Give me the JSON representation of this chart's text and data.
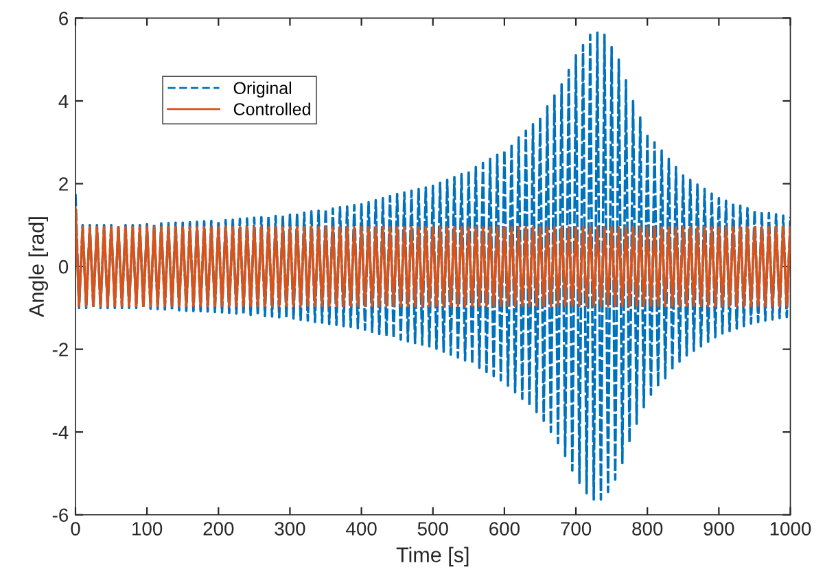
{
  "chart_data": {
    "type": "line",
    "xlabel": "Time [s]",
    "ylabel": "Angle [rad]",
    "xlim": [
      0,
      1000
    ],
    "xticks": [
      0,
      100,
      200,
      300,
      400,
      500,
      600,
      700,
      800,
      900,
      1000
    ],
    "ylim": [
      -6,
      6
    ],
    "yticks": [
      -6,
      -4,
      -2,
      0,
      2,
      4,
      6
    ],
    "grid": false,
    "legend": "top left",
    "marker": "none",
    "x": [
      0,
      5,
      10,
      15,
      20,
      25,
      30,
      35,
      40,
      45,
      50,
      55,
      60,
      65,
      70,
      75,
      80,
      85,
      90,
      95,
      100,
      105,
      110,
      115,
      120,
      125,
      130,
      135,
      140,
      145,
      150,
      155,
      160,
      165,
      170,
      175,
      180,
      185,
      190,
      195,
      200,
      205,
      210,
      215,
      220,
      225,
      230,
      235,
      240,
      245,
      250,
      255,
      260,
      265,
      270,
      275,
      280,
      285,
      290,
      295,
      300,
      305,
      310,
      315,
      320,
      325,
      330,
      335,
      340,
      345,
      350,
      355,
      360,
      365,
      370,
      375,
      380,
      385,
      390,
      395,
      400,
      405,
      410,
      415,
      420,
      425,
      430,
      435,
      440,
      445,
      450,
      455,
      460,
      465,
      470,
      475,
      480,
      485,
      490,
      495,
      500,
      505,
      510,
      515,
      520,
      525,
      530,
      535,
      540,
      545,
      550,
      555,
      560,
      565,
      570,
      575,
      580,
      585,
      590,
      595,
      600,
      605,
      610,
      615,
      620,
      625,
      630,
      635,
      640,
      645,
      650,
      655,
      660,
      665,
      670,
      675,
      680,
      685,
      690,
      695,
      700,
      705,
      710,
      715,
      720,
      725,
      730,
      735,
      740,
      745,
      750,
      755,
      760,
      765,
      770,
      775,
      780,
      785,
      790,
      795,
      800,
      805,
      810,
      815,
      820,
      825,
      830,
      835,
      840,
      845,
      850,
      855,
      860,
      865,
      870,
      875,
      880,
      885,
      890,
      895,
      900,
      905,
      910,
      915,
      920,
      925,
      930,
      935,
      940,
      945,
      950,
      955,
      960,
      965,
      970,
      975,
      980,
      985,
      990,
      995,
      1000
    ],
    "series": [
      {
        "name": "Original",
        "color": "#0072bd",
        "line_style": "dashed",
        "values": [
          1.75,
          -1.0,
          1.0,
          -1.0,
          1.0,
          -1.0,
          1.0,
          -1.0,
          1.0,
          -1.0,
          1.0,
          -1.0,
          1.0,
          -1.0,
          1.0,
          -1.0,
          1.0,
          -1.0,
          1.0,
          -1.0,
          1.02,
          -1.02,
          1.03,
          -1.03,
          1.04,
          -1.04,
          1.05,
          -1.05,
          1.06,
          -1.06,
          1.06,
          -1.07,
          1.07,
          -1.08,
          1.08,
          -1.08,
          1.09,
          -1.09,
          1.1,
          -1.1,
          1.1,
          -1.11,
          1.12,
          -1.12,
          1.13,
          -1.14,
          1.15,
          -1.15,
          1.16,
          -1.17,
          1.18,
          -1.18,
          1.19,
          -1.2,
          1.2,
          -1.21,
          1.22,
          -1.23,
          1.23,
          -1.24,
          1.25,
          -1.26,
          1.28,
          -1.29,
          1.3,
          -1.31,
          1.33,
          -1.34,
          1.35,
          -1.36,
          1.38,
          -1.39,
          1.4,
          -1.41,
          1.43,
          -1.44,
          1.45,
          -1.46,
          1.48,
          -1.49,
          1.5,
          -1.53,
          1.55,
          -1.58,
          1.6,
          -1.63,
          1.65,
          -1.68,
          1.7,
          -1.73,
          1.75,
          -1.77,
          1.79,
          -1.81,
          1.83,
          -1.85,
          1.87,
          -1.89,
          1.91,
          -1.93,
          1.95,
          -1.99,
          2.02,
          -2.06,
          2.09,
          -2.13,
          2.16,
          -2.2,
          2.23,
          -2.27,
          2.3,
          -2.35,
          2.4,
          -2.45,
          2.5,
          -2.55,
          2.6,
          -2.65,
          2.7,
          -2.75,
          2.8,
          -2.88,
          2.96,
          -3.04,
          3.12,
          -3.2,
          3.28,
          -3.36,
          3.44,
          -3.52,
          3.6,
          -3.73,
          3.87,
          -4.0,
          4.13,
          -4.27,
          4.4,
          -4.58,
          4.75,
          -4.93,
          5.1,
          -5.23,
          5.35,
          -5.48,
          5.6,
          -5.63,
          5.65,
          -5.63,
          5.6,
          -5.45,
          5.3,
          -5.15,
          5.0,
          -4.75,
          4.5,
          -4.25,
          4.0,
          -3.8,
          3.6,
          -3.4,
          3.2,
          -3.1,
          3.0,
          -2.9,
          2.8,
          -2.7,
          2.6,
          -2.5,
          2.4,
          -2.3,
          2.2,
          -2.15,
          2.09,
          -2.04,
          1.98,
          -1.93,
          1.87,
          -1.82,
          1.76,
          -1.71,
          1.65,
          -1.62,
          1.59,
          -1.56,
          1.53,
          -1.5,
          1.47,
          -1.44,
          1.41,
          -1.38,
          1.35,
          -1.34,
          1.32,
          -1.31,
          1.29,
          -1.28,
          1.26,
          -1.25,
          1.23,
          -1.22,
          1.2
        ]
      },
      {
        "name": "Controlled",
        "color": "#d95319",
        "line_style": "solid",
        "values": [
          1.4,
          -0.95,
          0.95,
          -0.95,
          0.95,
          -0.95,
          0.95,
          -0.95,
          0.95,
          -0.95,
          0.95,
          -0.95,
          0.95,
          -0.95,
          0.95,
          -0.95,
          0.95,
          -0.95,
          0.95,
          -0.95,
          0.95,
          -0.95,
          0.95,
          -0.95,
          0.95,
          -0.95,
          0.95,
          -0.95,
          0.95,
          -0.95,
          0.95,
          -0.95,
          0.95,
          -0.95,
          0.95,
          -0.95,
          0.95,
          -0.95,
          0.95,
          -0.95,
          0.95,
          -0.95,
          0.95,
          -0.95,
          0.95,
          -0.95,
          0.95,
          -0.95,
          0.95,
          -0.95,
          0.95,
          -0.95,
          0.95,
          -0.95,
          0.95,
          -0.95,
          0.95,
          -0.95,
          0.95,
          -0.95,
          0.95,
          -0.95,
          0.95,
          -0.95,
          0.95,
          -0.95,
          0.95,
          -0.95,
          0.95,
          -0.95,
          0.95,
          -0.95,
          0.95,
          -0.95,
          0.95,
          -0.95,
          0.95,
          -0.95,
          0.95,
          -0.95,
          0.95,
          -0.95,
          0.95,
          -0.95,
          0.95,
          -0.95,
          0.95,
          -0.95,
          0.95,
          -0.95,
          0.95,
          -0.95,
          0.95,
          -0.95,
          0.95,
          -0.95,
          0.95,
          -0.95,
          0.95,
          -0.95,
          0.95,
          -0.95,
          0.95,
          -0.95,
          0.95,
          -0.95,
          0.95,
          -0.95,
          0.95,
          -0.95,
          0.95,
          -0.95,
          0.95,
          -0.95,
          0.95,
          -0.95,
          0.95,
          -0.95,
          0.95,
          -0.95,
          0.95,
          -0.95,
          0.95,
          -0.95,
          0.95,
          -0.95,
          0.95,
          -0.95,
          0.95,
          -0.95,
          0.95,
          -0.95,
          0.95,
          -0.95,
          0.95,
          -0.95,
          0.95,
          -0.95,
          0.95,
          -0.95,
          0.95,
          -0.95,
          0.95,
          -0.95,
          0.95,
          -0.95,
          0.95,
          -0.95,
          0.95,
          -0.95,
          0.95,
          -0.95,
          0.95,
          -0.95,
          0.95,
          -0.95,
          0.95,
          -0.95,
          0.95,
          -0.95,
          0.95,
          -0.95,
          0.95,
          -0.95,
          0.95,
          -0.95,
          0.95,
          -0.95,
          0.95,
          -0.95,
          0.95,
          -0.95,
          0.95,
          -0.95,
          0.95,
          -0.95,
          0.95,
          -0.95,
          0.95,
          -0.95,
          0.95,
          -0.95,
          0.95,
          -0.95,
          0.95,
          -0.95,
          0.95,
          -0.95,
          0.95,
          -0.95,
          0.95,
          -0.95,
          0.95,
          -0.95,
          0.95,
          -0.95,
          0.95,
          -0.95,
          0.95,
          -0.95,
          0.95
        ]
      }
    ]
  }
}
